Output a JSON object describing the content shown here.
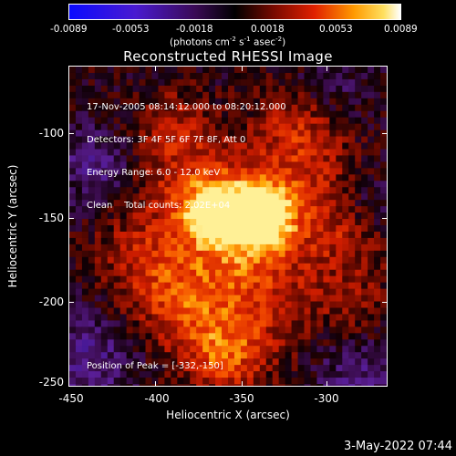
{
  "colorbar": {
    "ticks": [
      "-0.0089",
      "-0.0053",
      "-0.0018",
      "0.0018",
      "0.0053",
      "0.0089"
    ],
    "units_text": "(photons cm",
    "units_exp1": "-2",
    "units_mid": " s",
    "units_exp2": "-1",
    "units_mid2": " asec",
    "units_exp3": "-2",
    "units_end": ")"
  },
  "title": "Reconstructed RHESSI Image",
  "info": {
    "time": "17-Nov-2005 08:14:12.000 to 08:20:12.000",
    "detectors": "Detectors: 3F 4F 5F 6F 7F 8F, Att 0",
    "energy": "Energy Range: 6.0 - 12.0 keV",
    "clean": "Clean    Total counts: 2.02E+04"
  },
  "peak": "Position of Peak = [-332,-150]",
  "x_ticks": [
    "-450",
    "-400",
    "-350",
    "-300"
  ],
  "y_ticks": [
    "-100",
    "-150",
    "-200",
    "-250"
  ],
  "xlabel": "Heliocentric X (arcsec)",
  "ylabel": "Heliocentric Y (arcsec)",
  "timestamp": "3-May-2022 07:44",
  "colors": {
    "negative_low": "#1a00ff",
    "negative_mid": "#6a1aa8",
    "zero": "#000000",
    "positive_mid": "#d81a00",
    "positive_high": "#ffb000",
    "positive_max": "#ffffff"
  }
}
